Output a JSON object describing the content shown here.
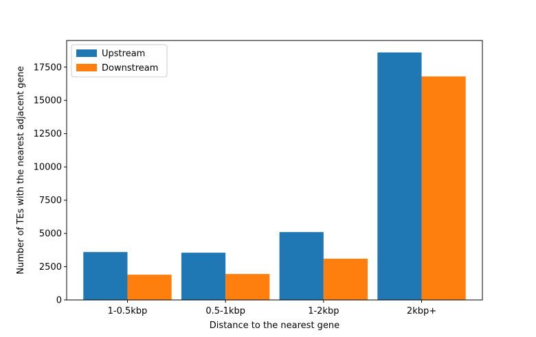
{
  "chart_data": {
    "type": "bar",
    "categories": [
      "1-0.5kbp",
      "0.5-1kbp",
      "1-2kbp",
      "2kbp+"
    ],
    "series": [
      {
        "name": "Upstream",
        "color": "#1f77b4",
        "values": [
          3600,
          3550,
          5100,
          18600
        ]
      },
      {
        "name": "Downstream",
        "color": "#ff7f0e",
        "values": [
          1900,
          1950,
          3100,
          16800
        ]
      }
    ],
    "title": "",
    "xlabel": "Distance to the nearest gene",
    "ylabel": "Number of TEs with the nearest adjacent gene",
    "ylim": [
      0,
      19500
    ],
    "yticks": [
      0,
      2500,
      5000,
      7500,
      10000,
      12500,
      15000,
      17500
    ],
    "grid": false,
    "legend_position": "top-left"
  }
}
